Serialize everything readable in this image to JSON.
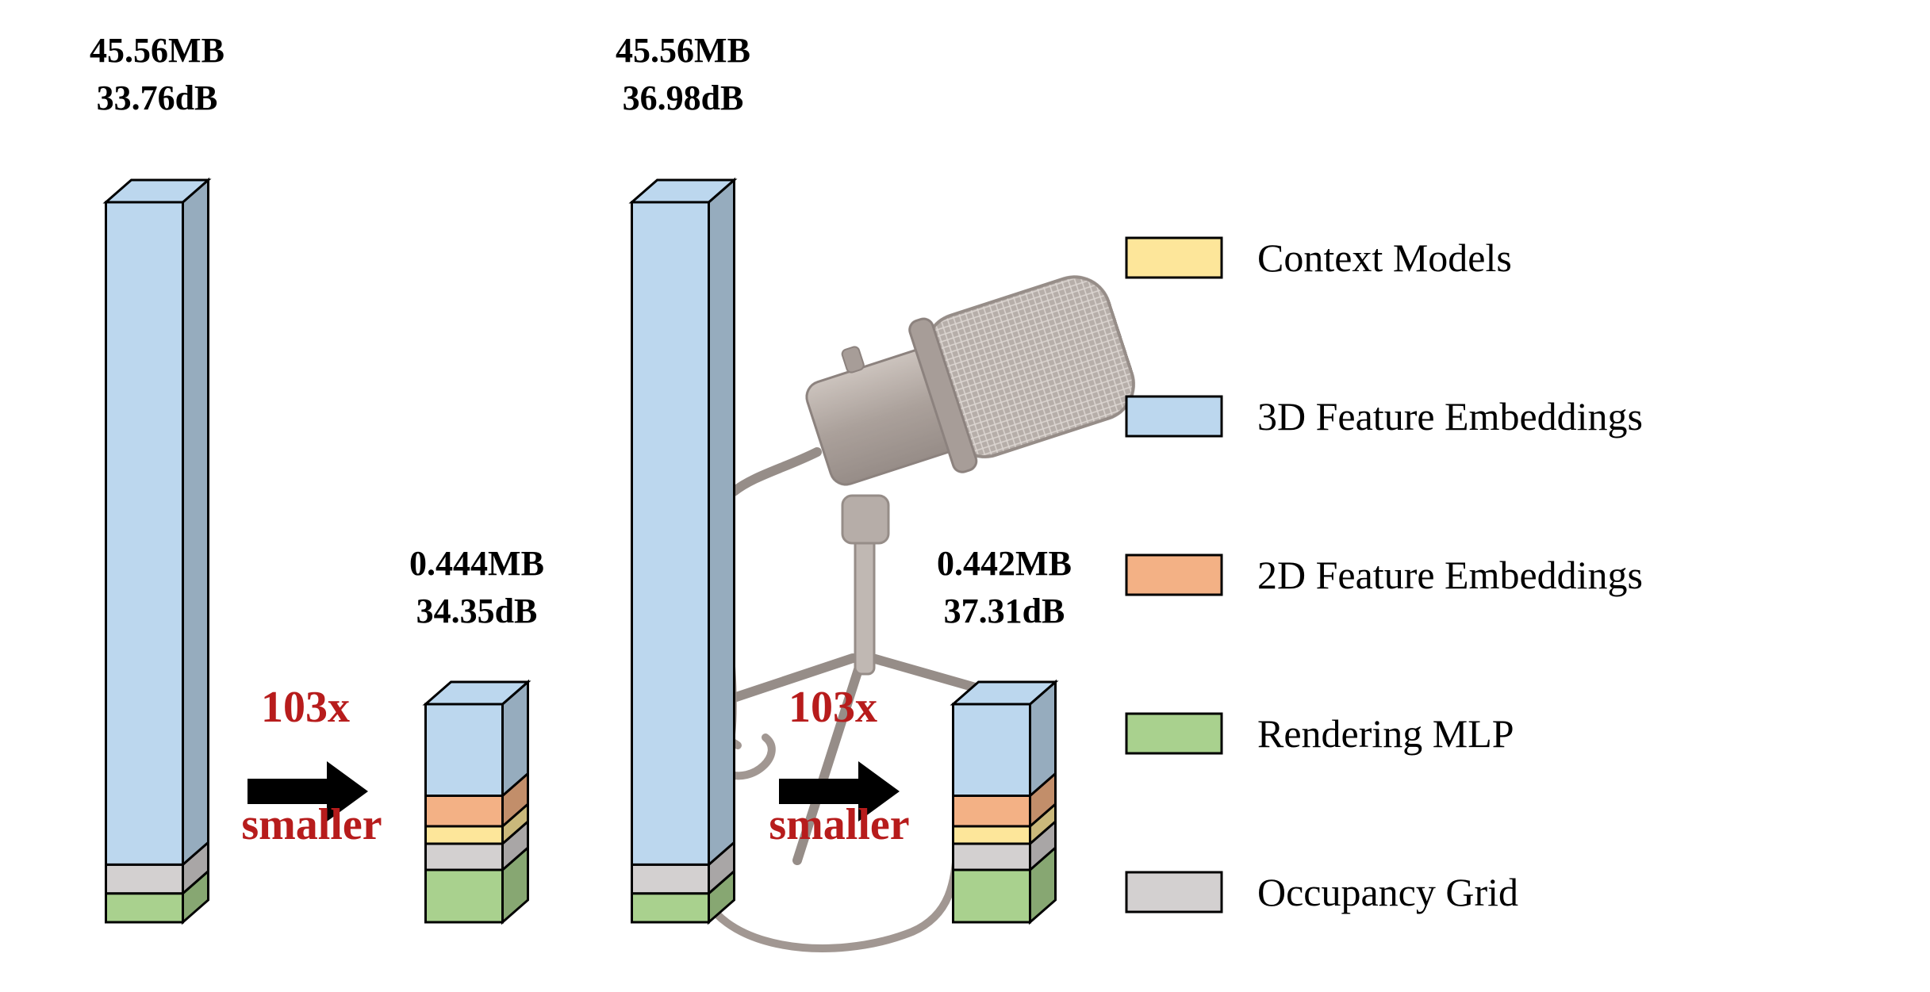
{
  "colors": {
    "context_models": "#fde69a",
    "feature_3d": "#bcd7ee",
    "feature_2d": "#f3b185",
    "rendering_mlp": "#a9d18e",
    "occupancy_grid": "#d3d0d0",
    "ratio_text": "#b71c1c",
    "outline": "#000000"
  },
  "chart_data": {
    "type": "bar",
    "style": "stacked 3D bars",
    "legend": {
      "placement": "right",
      "items": [
        {
          "key": "context_models",
          "label": "Context Models",
          "color": "#fde69a"
        },
        {
          "key": "feature_3d",
          "label": "3D Feature Embeddings",
          "color": "#bcd7ee"
        },
        {
          "key": "feature_2d",
          "label": "2D Feature Embeddings",
          "color": "#f3b185"
        },
        {
          "key": "rendering_mlp",
          "label": "Rendering MLP",
          "color": "#a9d18e"
        },
        {
          "key": "occupancy_grid",
          "label": "Occupancy Grid",
          "color": "#d3d0d0"
        }
      ]
    },
    "bars": [
      {
        "size": "45.56MB",
        "size_mb": 45.56,
        "psnr": "33.76dB",
        "segments": [
          {
            "key": "rendering_mlp",
            "fraction": 0.04
          },
          {
            "key": "occupancy_grid",
            "fraction": 0.04
          },
          {
            "key": "feature_3d",
            "fraction": 0.92
          }
        ]
      },
      {
        "size": "0.444MB",
        "size_mb": 0.444,
        "psnr": "34.35dB",
        "segments": [
          {
            "key": "rendering_mlp",
            "fraction": 0.24
          },
          {
            "key": "occupancy_grid",
            "fraction": 0.12
          },
          {
            "key": "context_models",
            "fraction": 0.08
          },
          {
            "key": "feature_2d",
            "fraction": 0.14
          },
          {
            "key": "feature_3d",
            "fraction": 0.42
          }
        ]
      },
      {
        "size": "45.56MB",
        "size_mb": 45.56,
        "psnr": "36.98dB",
        "segments": [
          {
            "key": "rendering_mlp",
            "fraction": 0.04
          },
          {
            "key": "occupancy_grid",
            "fraction": 0.04
          },
          {
            "key": "feature_3d",
            "fraction": 0.92
          }
        ]
      },
      {
        "size": "0.442MB",
        "size_mb": 0.442,
        "psnr": "37.31dB",
        "segments": [
          {
            "key": "rendering_mlp",
            "fraction": 0.24
          },
          {
            "key": "occupancy_grid",
            "fraction": 0.12
          },
          {
            "key": "context_models",
            "fraction": 0.08
          },
          {
            "key": "feature_2d",
            "fraction": 0.14
          },
          {
            "key": "feature_3d",
            "fraction": 0.42
          }
        ]
      }
    ],
    "comparisons": [
      {
        "ratio": "103x",
        "caption": "smaller"
      },
      {
        "ratio": "103x",
        "caption": "smaller"
      }
    ],
    "background_image": "microphone-on-tripod-stand"
  }
}
